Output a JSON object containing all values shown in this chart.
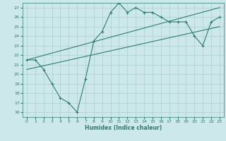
{
  "curve_x": [
    0,
    1,
    2,
    3,
    4,
    5,
    6,
    7,
    8,
    9,
    10,
    11,
    12,
    13,
    14,
    15,
    16,
    17,
    18,
    19,
    20,
    21,
    22,
    23
  ],
  "curve_y": [
    21.5,
    21.5,
    20.5,
    19.0,
    17.5,
    17.0,
    16.0,
    19.5,
    23.5,
    24.5,
    26.5,
    27.5,
    26.5,
    27.0,
    26.5,
    26.5,
    26.0,
    25.5,
    25.5,
    25.5,
    24.0,
    23.0,
    25.5,
    26.0
  ],
  "line1_x": [
    0,
    23
  ],
  "line1_y": [
    21.5,
    27.0
  ],
  "line2_x": [
    0,
    23
  ],
  "line2_y": [
    20.5,
    25.0
  ],
  "color": "#2d7d6e",
  "bg_color": "#cce8ea",
  "grid_color": "#aacfd2",
  "xlabel": "Humidex (Indice chaleur)",
  "xlim": [
    -0.5,
    23.5
  ],
  "ylim": [
    15.5,
    27.5
  ],
  "yticks": [
    16,
    17,
    18,
    19,
    20,
    21,
    22,
    23,
    24,
    25,
    26,
    27
  ],
  "xticks": [
    0,
    1,
    2,
    3,
    4,
    5,
    6,
    7,
    8,
    9,
    10,
    11,
    12,
    13,
    14,
    15,
    16,
    17,
    18,
    19,
    20,
    21,
    22,
    23
  ]
}
